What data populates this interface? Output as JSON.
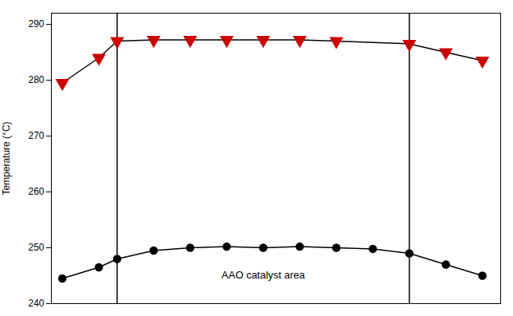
{
  "chart_data": {
    "type": "line",
    "ylabel": "Temperature (°C)",
    "ylim": [
      240,
      292
    ],
    "yticks": [
      240,
      250,
      260,
      270,
      280,
      290
    ],
    "xlim": [
      -0.3,
      12.0
    ],
    "tick_labels": "y",
    "grid": false,
    "vlines": [
      1.5,
      9.5
    ],
    "annotation": {
      "text": "AAO catalyst area",
      "x": 5.5,
      "y": 244.5
    },
    "series": [
      {
        "color": "#000000",
        "marker": "circle",
        "x": [
          0,
          1,
          1.5,
          2.5,
          3.5,
          4.5,
          5.5,
          6.5,
          7.5,
          8.5,
          9.5,
          10.5,
          11.5
        ],
        "values": [
          244.5,
          246.5,
          248.0,
          249.5,
          250.0,
          250.2,
          250.0,
          250.2,
          250.0,
          249.8,
          249.0,
          247.0,
          245.0
        ]
      },
      {
        "color": "#cc0000",
        "marker": "triangle-down",
        "x": [
          0,
          1,
          1.5,
          2.5,
          3.5,
          4.5,
          5.5,
          6.5,
          7.5,
          9.5,
          10.5,
          11.5
        ],
        "values": [
          279.5,
          284.0,
          287.0,
          287.2,
          287.2,
          287.2,
          287.2,
          287.2,
          287.0,
          286.5,
          285.0,
          283.5
        ]
      }
    ]
  }
}
